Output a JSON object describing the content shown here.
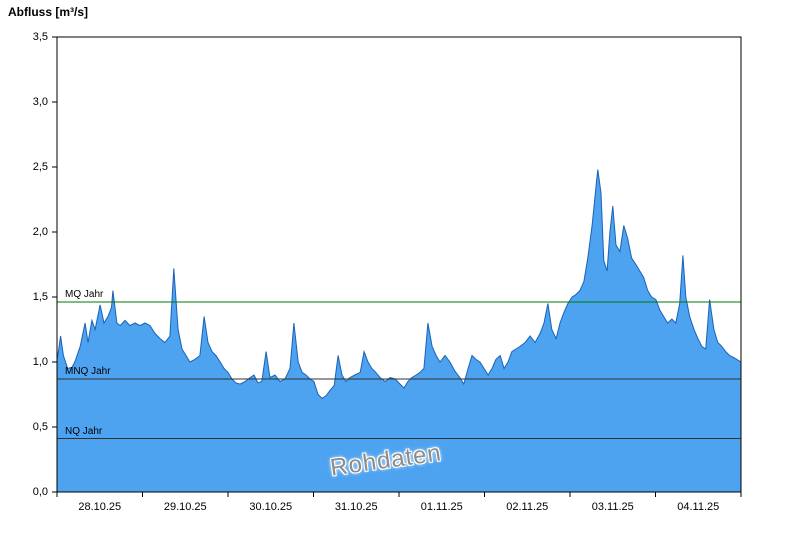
{
  "title": "Abfluss [m³/s]",
  "watermark": "Rohdaten",
  "chart_data": {
    "type": "area",
    "title": "Abfluss [m³/s]",
    "ylabel": "Abfluss [m³/s]",
    "xlabel": "",
    "grid": false,
    "legend": "none",
    "xlim": [
      0,
      192
    ],
    "ylim": [
      0,
      3.5
    ],
    "x_unit": "hours from 28.10.25 00:00",
    "categories": [
      "28.10.25",
      "29.10.25",
      "30.10.25",
      "31.10.25",
      "01.11.25",
      "02.11.25",
      "03.11.25",
      "04.11.25"
    ],
    "x_tick_hours": [
      0,
      24,
      48,
      72,
      96,
      120,
      144,
      168,
      192
    ],
    "y_ticks": [
      {
        "value": 0.0,
        "label": "0,0"
      },
      {
        "value": 0.5,
        "label": "0,5"
      },
      {
        "value": 1.0,
        "label": "1,0"
      },
      {
        "value": 1.5,
        "label": "1,5"
      },
      {
        "value": 2.0,
        "label": "2,0"
      },
      {
        "value": 2.5,
        "label": "2,5"
      },
      {
        "value": 3.0,
        "label": "3,0"
      },
      {
        "value": 3.5,
        "label": "3,5"
      }
    ],
    "reference_lines": [
      {
        "id": "mq-jahr",
        "label": "MQ Jahr",
        "value": 1.46,
        "color": "#007700"
      },
      {
        "id": "mnq-jahr",
        "label": "MNQ Jahr",
        "value": 0.87,
        "color": "#303030"
      },
      {
        "id": "nq-jahr",
        "label": "NQ Jahr",
        "value": 0.41,
        "color": "#303030"
      }
    ],
    "colors": {
      "area_fill": "#4DA3F0",
      "area_stroke": "#1A62B5",
      "axis": "#000000"
    },
    "points": [
      [
        0,
        1.02
      ],
      [
        0.5,
        1.1
      ],
      [
        1,
        1.2
      ],
      [
        1.8,
        1.05
      ],
      [
        3,
        0.95
      ],
      [
        4.2,
        0.96
      ],
      [
        5,
        1.0
      ],
      [
        6.5,
        1.12
      ],
      [
        7.9,
        1.3
      ],
      [
        8.7,
        1.15
      ],
      [
        9.8,
        1.32
      ],
      [
        10.7,
        1.25
      ],
      [
        12.1,
        1.44
      ],
      [
        13.2,
        1.3
      ],
      [
        14.3,
        1.35
      ],
      [
        15.3,
        1.42
      ],
      [
        15.7,
        1.55
      ],
      [
        16.8,
        1.3
      ],
      [
        17.7,
        1.28
      ],
      [
        19.1,
        1.32
      ],
      [
        20.5,
        1.28
      ],
      [
        21.9,
        1.3
      ],
      [
        23.3,
        1.28
      ],
      [
        24.7,
        1.3
      ],
      [
        26.1,
        1.28
      ],
      [
        27.5,
        1.22
      ],
      [
        28.9,
        1.18
      ],
      [
        30.3,
        1.15
      ],
      [
        31.7,
        1.2
      ],
      [
        32.8,
        1.72
      ],
      [
        34,
        1.25
      ],
      [
        35.1,
        1.1
      ],
      [
        36.2,
        1.05
      ],
      [
        37.3,
        1.0
      ],
      [
        38.7,
        1.02
      ],
      [
        40.1,
        1.05
      ],
      [
        41.3,
        1.35
      ],
      [
        42.4,
        1.15
      ],
      [
        43.5,
        1.08
      ],
      [
        44.6,
        1.05
      ],
      [
        45.8,
        1.0
      ],
      [
        46.9,
        0.95
      ],
      [
        48,
        0.92
      ],
      [
        49.1,
        0.87
      ],
      [
        50.2,
        0.84
      ],
      [
        51.4,
        0.83
      ],
      [
        52.8,
        0.85
      ],
      [
        54.2,
        0.88
      ],
      [
        55.3,
        0.9
      ],
      [
        56.4,
        0.84
      ],
      [
        57.5,
        0.85
      ],
      [
        58.7,
        1.08
      ],
      [
        59.8,
        0.88
      ],
      [
        61.2,
        0.9
      ],
      [
        62.6,
        0.85
      ],
      [
        64,
        0.87
      ],
      [
        65.4,
        0.95
      ],
      [
        66.5,
        1.3
      ],
      [
        67.7,
        1.0
      ],
      [
        68.8,
        0.92
      ],
      [
        69.9,
        0.9
      ],
      [
        71,
        0.87
      ],
      [
        72.1,
        0.85
      ],
      [
        73.3,
        0.75
      ],
      [
        74.4,
        0.72
      ],
      [
        75.5,
        0.74
      ],
      [
        76.6,
        0.78
      ],
      [
        77.8,
        0.82
      ],
      [
        78.9,
        1.05
      ],
      [
        80,
        0.9
      ],
      [
        81.1,
        0.85
      ],
      [
        82.2,
        0.88
      ],
      [
        83.6,
        0.9
      ],
      [
        85.1,
        0.92
      ],
      [
        86.2,
        1.08
      ],
      [
        87.3,
        1.0
      ],
      [
        88.4,
        0.95
      ],
      [
        89.5,
        0.92
      ],
      [
        90.7,
        0.88
      ],
      [
        92.1,
        0.85
      ],
      [
        93.5,
        0.88
      ],
      [
        94.9,
        0.87
      ],
      [
        96.3,
        0.83
      ],
      [
        97.4,
        0.8
      ],
      [
        98.5,
        0.85
      ],
      [
        99.6,
        0.88
      ],
      [
        100.8,
        0.9
      ],
      [
        101.9,
        0.92
      ],
      [
        103,
        0.95
      ],
      [
        104.1,
        1.3
      ],
      [
        105.3,
        1.12
      ],
      [
        106.4,
        1.05
      ],
      [
        107.5,
        1.0
      ],
      [
        108.9,
        1.05
      ],
      [
        110.3,
        1.0
      ],
      [
        111.7,
        0.93
      ],
      [
        113.1,
        0.88
      ],
      [
        114.2,
        0.83
      ],
      [
        115.4,
        0.95
      ],
      [
        116.5,
        1.05
      ],
      [
        117.6,
        1.02
      ],
      [
        118.7,
        1.0
      ],
      [
        119.9,
        0.95
      ],
      [
        121,
        0.9
      ],
      [
        122.1,
        0.95
      ],
      [
        123.2,
        1.02
      ],
      [
        124.4,
        1.05
      ],
      [
        125.5,
        0.95
      ],
      [
        126.6,
        1.0
      ],
      [
        127.7,
        1.08
      ],
      [
        128.8,
        1.1
      ],
      [
        130,
        1.12
      ],
      [
        131.4,
        1.15
      ],
      [
        132.8,
        1.2
      ],
      [
        134.2,
        1.15
      ],
      [
        135.6,
        1.22
      ],
      [
        136.7,
        1.3
      ],
      [
        137.8,
        1.45
      ],
      [
        138.9,
        1.25
      ],
      [
        140.1,
        1.18
      ],
      [
        141.2,
        1.3
      ],
      [
        142.3,
        1.38
      ],
      [
        143.4,
        1.45
      ],
      [
        144.6,
        1.5
      ],
      [
        145.7,
        1.52
      ],
      [
        146.8,
        1.55
      ],
      [
        147.9,
        1.62
      ],
      [
        149,
        1.8
      ],
      [
        150.2,
        2.05
      ],
      [
        151.3,
        2.35
      ],
      [
        151.8,
        2.48
      ],
      [
        152.7,
        2.3
      ],
      [
        153.5,
        1.78
      ],
      [
        154.4,
        1.7
      ],
      [
        155.2,
        2.0
      ],
      [
        156,
        2.2
      ],
      [
        156.9,
        1.9
      ],
      [
        158,
        1.85
      ],
      [
        159.1,
        2.05
      ],
      [
        160.2,
        1.95
      ],
      [
        161.3,
        1.8
      ],
      [
        162.5,
        1.75
      ],
      [
        163.6,
        1.7
      ],
      [
        164.7,
        1.65
      ],
      [
        165.8,
        1.55
      ],
      [
        166.9,
        1.5
      ],
      [
        168.1,
        1.48
      ],
      [
        169.2,
        1.4
      ],
      [
        170.3,
        1.35
      ],
      [
        171.4,
        1.3
      ],
      [
        172.6,
        1.33
      ],
      [
        173.7,
        1.3
      ],
      [
        174.8,
        1.45
      ],
      [
        175.7,
        1.82
      ],
      [
        176.5,
        1.5
      ],
      [
        177.6,
        1.35
      ],
      [
        178.8,
        1.25
      ],
      [
        179.9,
        1.18
      ],
      [
        181,
        1.12
      ],
      [
        182.1,
        1.1
      ],
      [
        183.2,
        1.48
      ],
      [
        184.4,
        1.25
      ],
      [
        185.5,
        1.15
      ],
      [
        186.6,
        1.12
      ],
      [
        187.7,
        1.08
      ],
      [
        188.8,
        1.05
      ],
      [
        190.2,
        1.03
      ],
      [
        192,
        1.0
      ]
    ]
  }
}
